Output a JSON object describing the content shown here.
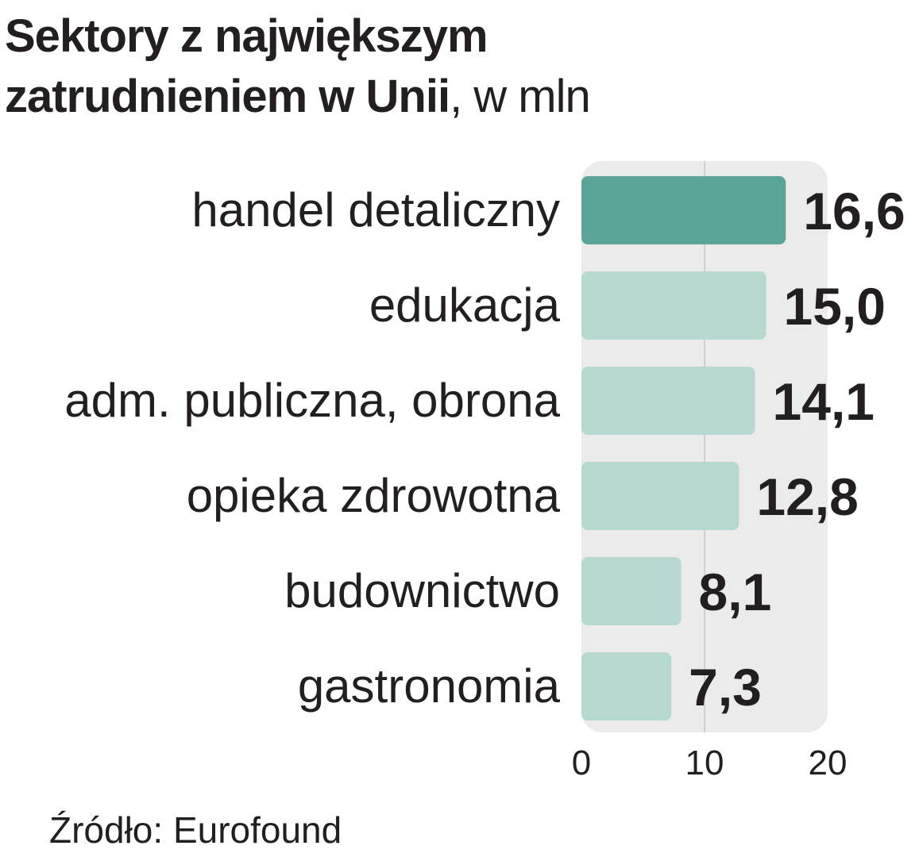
{
  "title": {
    "line1": "Sektory z największym",
    "line2": "zatrudnieniem w Unii",
    "unit": ", w mln"
  },
  "source": "Źródło: Eurofound",
  "colors": {
    "highlight_bar": "#5ba597",
    "bar": "#b5d8d0",
    "plot_background": "#ebebeb",
    "text": "#231f20"
  },
  "chart_data": {
    "type": "bar",
    "orientation": "horizontal",
    "categories": [
      "handel detaliczny",
      "edukacja",
      "adm. publiczna, obrona",
      "opieka zdrowotna",
      "budownictwo",
      "gastronomia"
    ],
    "values": [
      16.6,
      15.0,
      14.1,
      12.8,
      8.1,
      7.3
    ],
    "value_labels": [
      "16,6",
      "15,0",
      "14,1",
      "12,8",
      "8,1",
      "7,3"
    ],
    "highlight_index": 0,
    "xlim": [
      0,
      20
    ],
    "x_ticks": [
      0,
      10,
      20
    ],
    "x_tick_labels": [
      "0",
      "10",
      "20"
    ],
    "grid": true
  }
}
